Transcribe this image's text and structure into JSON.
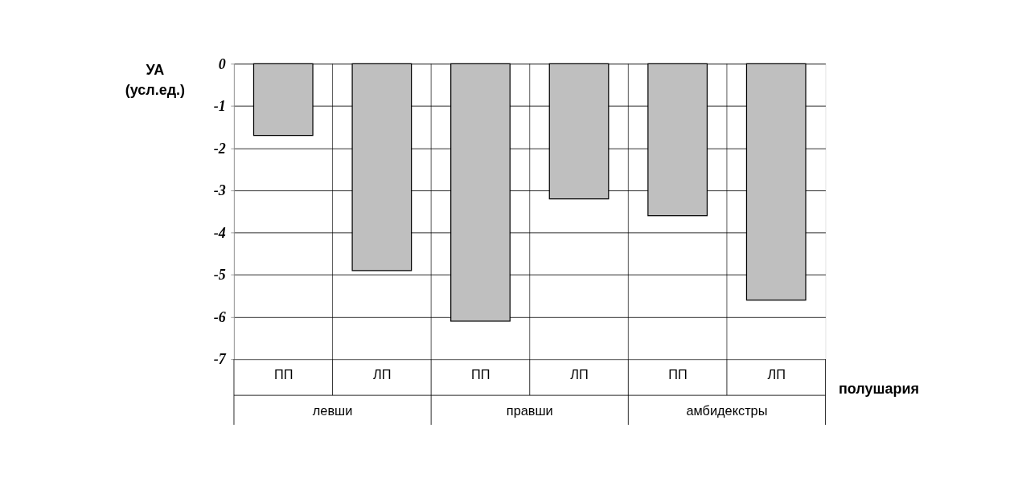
{
  "chart_data": {
    "type": "bar",
    "categories": [
      "ПП",
      "ЛП",
      "ПП",
      "ЛП",
      "ПП",
      "ЛП"
    ],
    "values": [
      -1.7,
      -4.9,
      -6.1,
      -3.2,
      -3.6,
      -5.6
    ],
    "color": "#bfbfbf",
    "ylim": [
      -7,
      0
    ],
    "yticks": [
      -7,
      -6,
      -5,
      -4,
      -3,
      -2,
      -1,
      0
    ],
    "ylabel": "УА (усл.ед.)",
    "xlabel": "полушария",
    "annotations": [
      "левши",
      "правши",
      "амбидекстры"
    ],
    "grid": true
  }
}
